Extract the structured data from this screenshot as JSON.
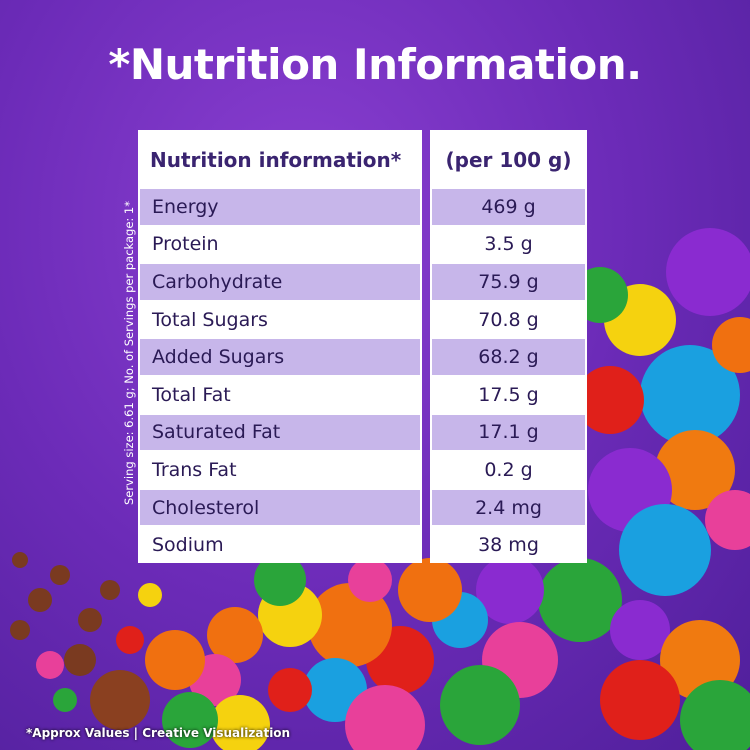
{
  "title": "*Nutrition Information.",
  "side_note": "Serving size: 6.61 g; No. of Servings per package: 1*",
  "table": {
    "header_left": "Nutrition information*",
    "header_right": "(per 100 g)",
    "rows": [
      {
        "label": "Energy",
        "value": "469 g"
      },
      {
        "label": "Protein",
        "value": "3.5 g"
      },
      {
        "label": "Carbohydrate",
        "value": "75.9 g"
      },
      {
        "label": "Total Sugars",
        "value": "70.8 g"
      },
      {
        "label": "Added Sugars",
        "value": "68.2 g"
      },
      {
        "label": "Total Fat",
        "value": "17.5 g"
      },
      {
        "label": "Saturated Fat",
        "value": "17.1 g"
      },
      {
        "label": "Trans Fat",
        "value": "0.2 g"
      },
      {
        "label": "Cholesterol",
        "value": "2.4 mg"
      },
      {
        "label": "Sodium",
        "value": "38 mg"
      }
    ]
  },
  "footer": "*Approx Values | Creative Visualization",
  "colors": {
    "background": "#6c2bb8",
    "row_alt": "#c7b6ea",
    "text": "#2a1a55"
  }
}
